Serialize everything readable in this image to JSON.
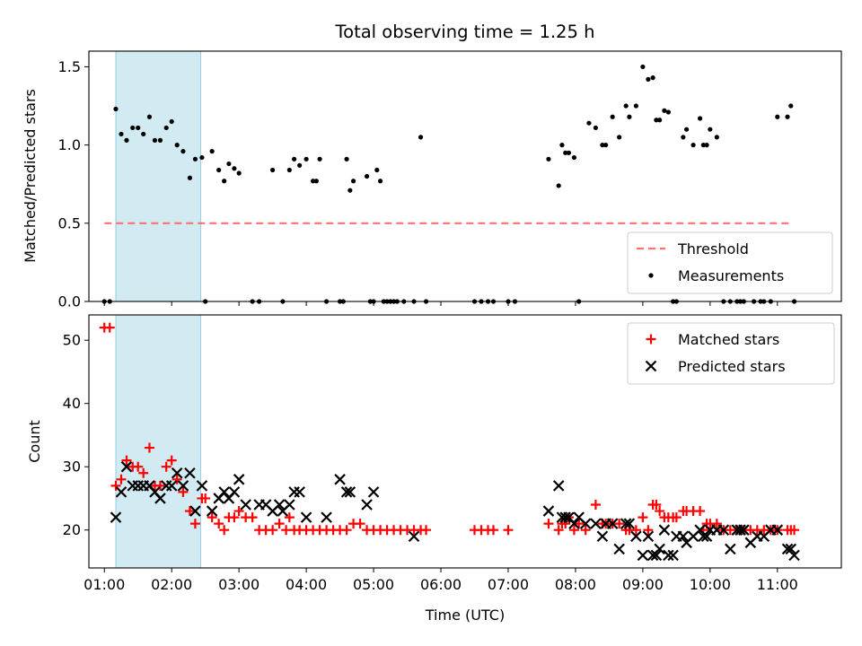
{
  "chart_data": [
    {
      "type": "scatter",
      "title": "Total observing time = 1.25 h",
      "ylabel": "Matched/Predicted stars",
      "xlabel": "",
      "ylim": [
        0,
        1.6
      ],
      "xlim": [
        0.77,
        11.95
      ],
      "y_ticks": [
        "0.0",
        "0.5",
        "1.0",
        "1.5"
      ],
      "shaded_interval": [
        1.17,
        2.43
      ],
      "shade_color": "#add8e6",
      "legend_position": "lower-right",
      "series": [
        {
          "name": "Threshold",
          "style": "dashed-line",
          "color": "#ff7070",
          "x": [
            1.0,
            11.2
          ],
          "y": [
            0.5,
            0.5
          ]
        },
        {
          "name": "Measurements",
          "style": "dots",
          "color": "#000000",
          "x": [
            1.0,
            1.08,
            1.17,
            1.25,
            1.33,
            1.42,
            1.5,
            1.58,
            1.67,
            1.75,
            1.83,
            1.92,
            2.0,
            2.08,
            2.17,
            2.27,
            2.35,
            2.45,
            2.5,
            2.6,
            2.7,
            2.78,
            2.85,
            2.93,
            3.0,
            3.2,
            3.3,
            3.5,
            3.65,
            3.75,
            3.82,
            3.9,
            4.0,
            4.1,
            4.15,
            4.2,
            4.3,
            4.5,
            4.55,
            4.6,
            4.65,
            4.7,
            4.9,
            4.95,
            5.0,
            5.05,
            5.1,
            5.15,
            5.2,
            5.25,
            5.3,
            5.35,
            5.45,
            5.6,
            5.7,
            5.78,
            6.5,
            6.6,
            6.7,
            6.78,
            7.0,
            7.1,
            7.6,
            7.75,
            7.8,
            7.85,
            7.9,
            7.98,
            8.05,
            8.2,
            8.3,
            8.4,
            8.45,
            8.55,
            8.65,
            8.75,
            8.8,
            8.9,
            9.0,
            9.08,
            9.15,
            9.2,
            9.25,
            9.32,
            9.38,
            9.45,
            9.5,
            9.6,
            9.65,
            9.75,
            9.85,
            9.9,
            9.95,
            10.0,
            10.1,
            10.2,
            10.3,
            10.4,
            10.45,
            10.5,
            10.65,
            10.75,
            10.8,
            10.9,
            11.0,
            11.15,
            11.2,
            11.25
          ],
          "y": [
            0,
            0,
            1.23,
            1.07,
            1.03,
            1.11,
            1.11,
            1.07,
            1.18,
            1.03,
            1.03,
            1.11,
            1.15,
            1.0,
            0.96,
            0.79,
            0.91,
            0.92,
            0,
            0.96,
            0.84,
            0.77,
            0.88,
            0.85,
            0.82,
            0,
            0,
            0.84,
            0,
            0.84,
            0.91,
            0.87,
            0.91,
            0.77,
            0.77,
            0.91,
            0,
            0,
            0,
            0.91,
            0.71,
            0.77,
            0.8,
            0,
            0,
            0.84,
            0.77,
            0,
            0,
            0,
            0,
            0,
            0,
            0,
            1.05,
            0,
            0,
            0,
            0,
            0,
            0,
            0,
            0.91,
            0.74,
            1.0,
            0.95,
            0.95,
            0.92,
            0,
            1.14,
            1.11,
            1.0,
            1.0,
            1.18,
            1.05,
            1.25,
            1.18,
            1.25,
            1.5,
            1.42,
            1.43,
            1.16,
            1.16,
            1.22,
            1.21,
            0,
            0,
            1.05,
            1.1,
            1.0,
            1.17,
            1.0,
            1.0,
            1.1,
            1.05,
            0,
            0,
            0,
            0,
            0,
            0,
            0,
            0,
            0,
            1.18,
            1.18,
            1.25,
            0
          ]
        }
      ]
    },
    {
      "type": "scatter",
      "xlabel": "Time (UTC)",
      "ylabel": "Count",
      "ylim": [
        14,
        54
      ],
      "xlim": [
        0.77,
        11.95
      ],
      "y_ticks": [
        "20",
        "30",
        "40",
        "50"
      ],
      "x_ticks": [
        "01:00",
        "02:00",
        "03:00",
        "04:00",
        "05:00",
        "06:00",
        "07:00",
        "08:00",
        "09:00",
        "10:00",
        "11:00"
      ],
      "shaded_interval": [
        1.17,
        2.43
      ],
      "shade_color": "#add8e6",
      "legend_position": "top-right",
      "series": [
        {
          "name": "Matched stars",
          "marker": "plus",
          "color": "#ff0000",
          "x": [
            1.0,
            1.08,
            1.17,
            1.25,
            1.33,
            1.42,
            1.5,
            1.58,
            1.67,
            1.75,
            1.83,
            1.92,
            2.0,
            2.08,
            2.17,
            2.27,
            2.35,
            2.45,
            2.5,
            2.6,
            2.7,
            2.78,
            2.85,
            2.93,
            3.0,
            3.1,
            3.2,
            3.3,
            3.4,
            3.5,
            3.6,
            3.7,
            3.75,
            3.82,
            3.9,
            4.0,
            4.1,
            4.2,
            4.3,
            4.4,
            4.5,
            4.6,
            4.7,
            4.8,
            4.9,
            5.0,
            5.1,
            5.2,
            5.3,
            5.4,
            5.5,
            5.6,
            5.7,
            5.78,
            6.5,
            6.6,
            6.7,
            6.78,
            7.0,
            7.6,
            7.75,
            7.8,
            7.85,
            7.9,
            7.98,
            8.05,
            8.15,
            8.3,
            8.4,
            8.45,
            8.55,
            8.65,
            8.75,
            8.8,
            8.9,
            9.0,
            9.08,
            9.15,
            9.2,
            9.25,
            9.32,
            9.38,
            9.45,
            9.5,
            9.6,
            9.65,
            9.75,
            9.85,
            9.9,
            9.95,
            10.0,
            10.1,
            10.2,
            10.3,
            10.4,
            10.45,
            10.5,
            10.6,
            10.7,
            10.8,
            10.9,
            11.0,
            11.15,
            11.2,
            11.25
          ],
          "y": [
            52,
            52,
            27,
            28,
            31,
            30,
            30,
            29,
            33,
            27,
            27,
            30,
            31,
            28,
            26,
            23,
            21,
            25,
            25,
            22,
            21,
            20,
            22,
            22,
            23,
            22,
            22,
            20,
            20,
            20,
            21,
            20,
            22,
            20,
            20,
            20,
            20,
            20,
            20,
            20,
            20,
            20,
            21,
            21,
            20,
            20,
            20,
            20,
            20,
            20,
            20,
            20,
            20,
            20,
            20,
            20,
            20,
            20,
            20,
            21,
            20,
            21,
            21,
            22,
            20,
            21,
            20,
            24,
            21,
            21,
            21,
            21,
            20,
            20,
            20,
            22,
            20,
            24,
            24,
            23,
            22,
            22,
            22,
            22,
            23,
            23,
            23,
            23,
            20,
            21,
            21,
            21,
            20,
            20,
            20,
            20,
            20,
            20,
            20,
            20,
            20,
            20,
            20,
            20,
            20
          ]
        },
        {
          "name": "Predicted stars",
          "marker": "x",
          "color": "#000000",
          "x": [
            1.17,
            1.25,
            1.33,
            1.42,
            1.5,
            1.58,
            1.67,
            1.75,
            1.83,
            1.92,
            2.0,
            2.08,
            2.17,
            2.27,
            2.35,
            2.45,
            2.6,
            2.7,
            2.78,
            2.85,
            2.93,
            3.0,
            3.1,
            3.3,
            3.4,
            3.5,
            3.6,
            3.65,
            3.75,
            3.82,
            3.9,
            4.0,
            4.3,
            4.5,
            4.6,
            4.65,
            4.9,
            5.0,
            5.6,
            7.6,
            7.75,
            7.8,
            7.85,
            7.9,
            7.98,
            8.05,
            8.15,
            8.3,
            8.4,
            8.45,
            8.55,
            8.65,
            8.75,
            8.8,
            8.9,
            9.0,
            9.08,
            9.15,
            9.2,
            9.25,
            9.32,
            9.38,
            9.45,
            9.5,
            9.6,
            9.65,
            9.75,
            9.85,
            9.9,
            9.95,
            10.0,
            10.1,
            10.2,
            10.3,
            10.4,
            10.45,
            10.5,
            10.6,
            10.7,
            10.8,
            10.9,
            11.0,
            11.15,
            11.2,
            11.25
          ],
          "y": [
            22,
            26,
            30,
            27,
            27,
            27,
            27,
            26,
            25,
            27,
            27,
            29,
            27,
            29,
            23,
            27,
            23,
            25,
            26,
            25,
            26,
            28,
            24,
            24,
            24,
            23,
            24,
            23,
            24,
            26,
            26,
            22,
            22,
            28,
            26,
            26,
            24,
            26,
            19,
            23,
            27,
            22,
            22,
            22,
            21,
            22,
            21,
            21,
            19,
            21,
            21,
            17,
            21,
            21,
            19,
            16,
            19,
            16,
            16,
            17,
            20,
            16,
            16,
            19,
            19,
            18,
            19,
            20,
            19,
            19,
            20,
            20,
            20,
            17,
            20,
            20,
            20,
            18,
            19,
            19,
            20,
            20,
            17,
            17,
            16
          ]
        }
      ]
    }
  ]
}
